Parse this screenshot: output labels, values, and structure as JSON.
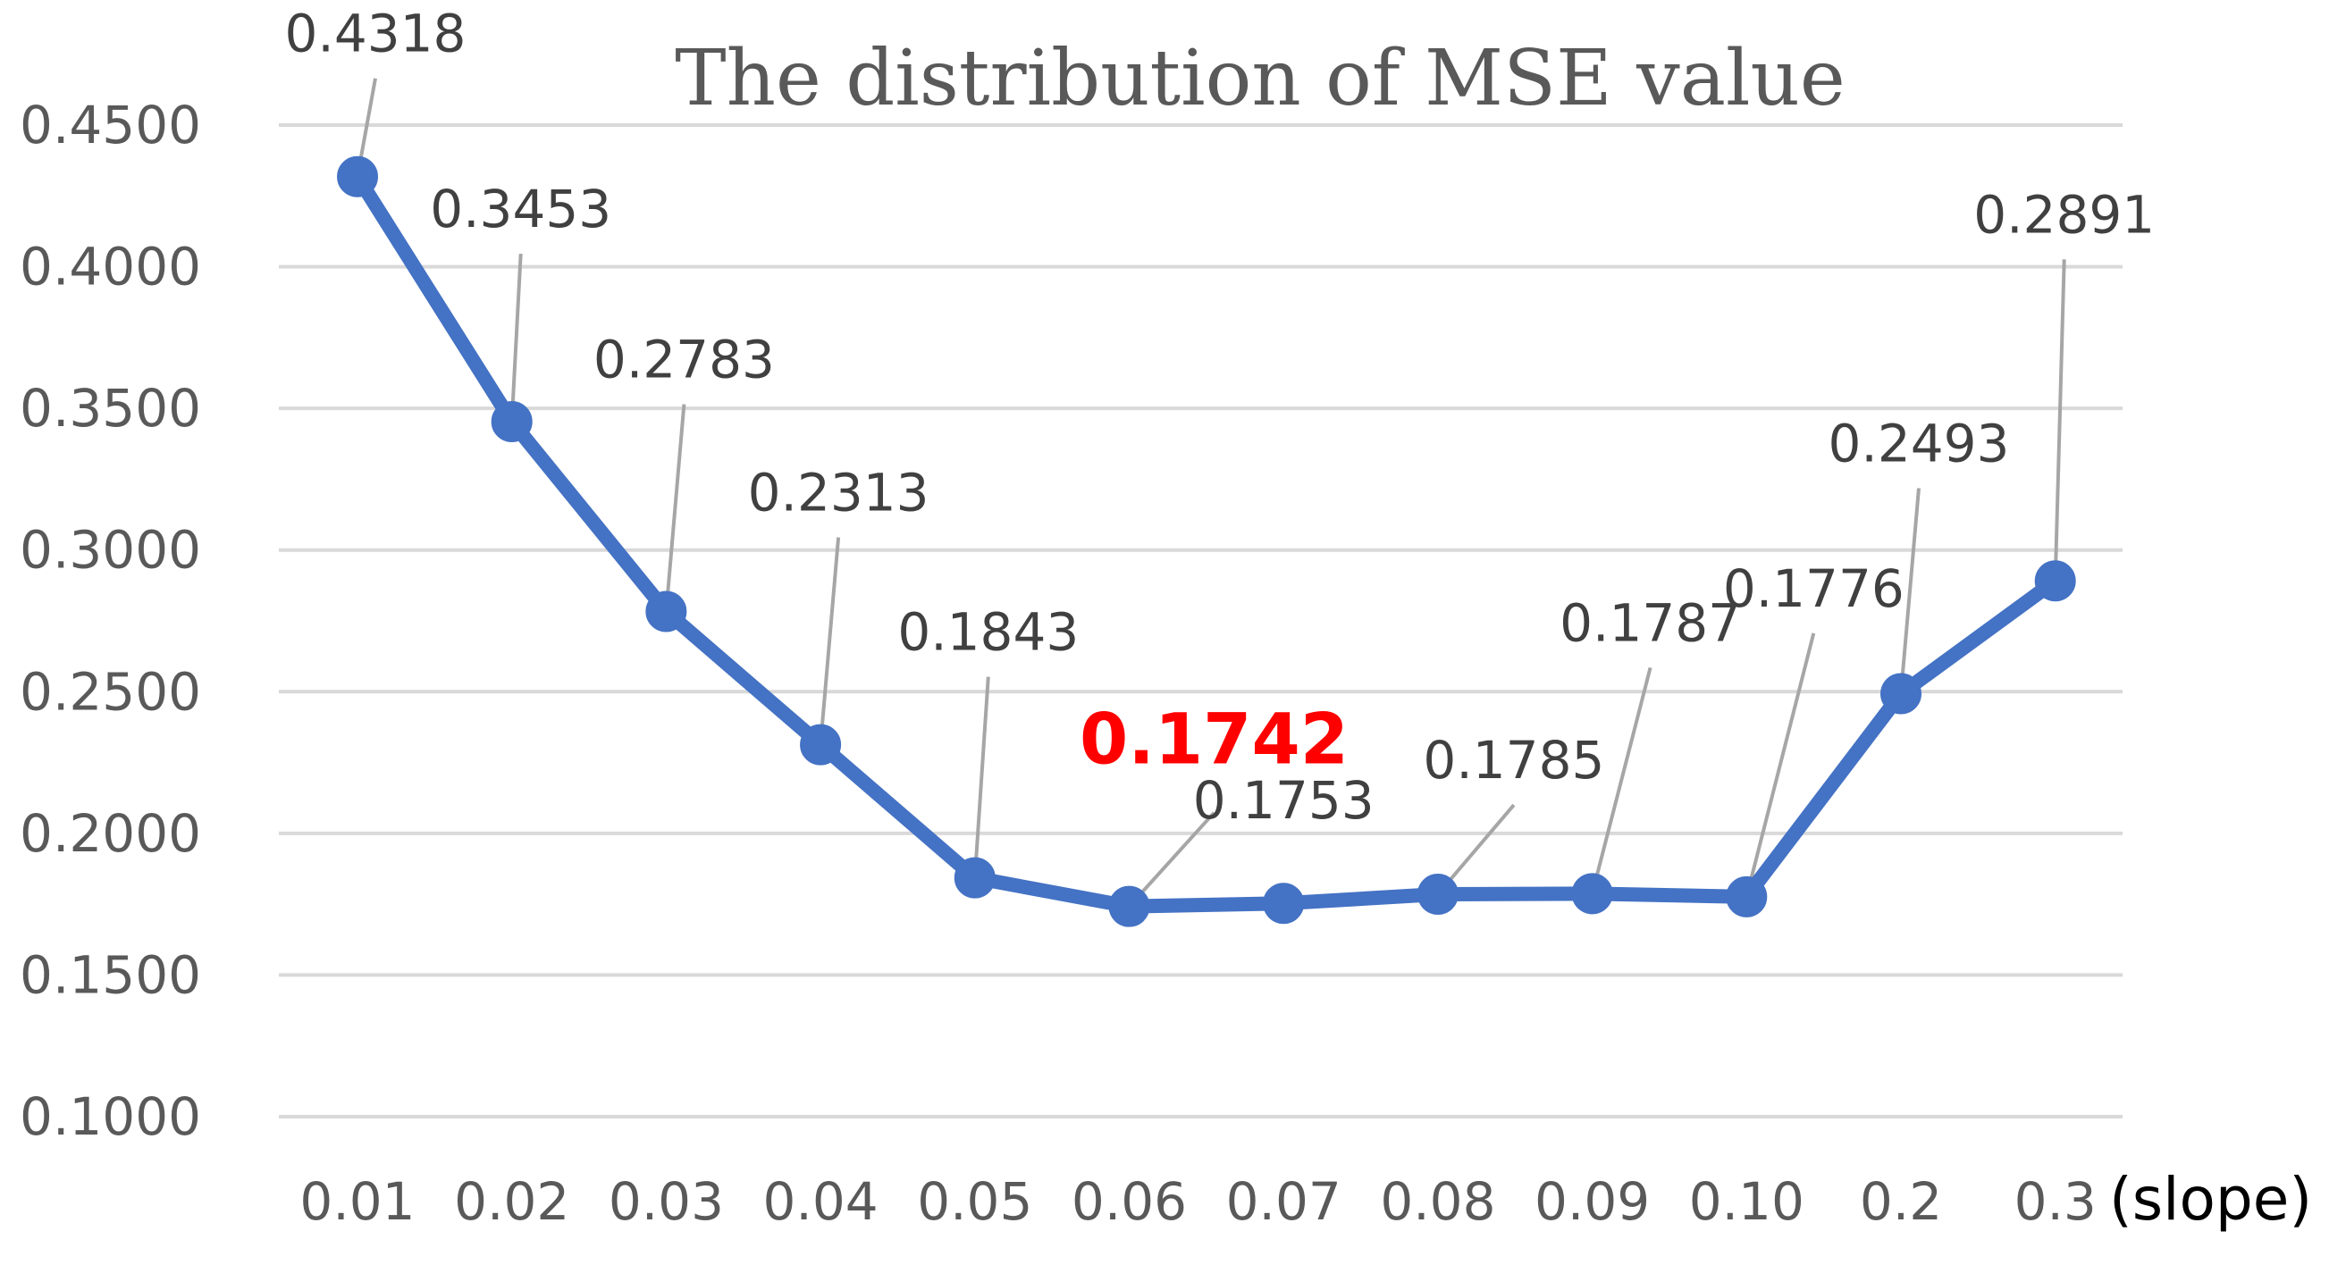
{
  "chart_data": {
    "type": "line",
    "title": "The distribution of MSE value",
    "xlabel": "(slope)",
    "ylabel": "",
    "categories": [
      "0.01",
      "0.02",
      "0.03",
      "0.04",
      "0.05",
      "0.06",
      "0.07",
      "0.08",
      "0.09",
      "0.10",
      "0.2",
      "0.3"
    ],
    "series": [
      {
        "name": "MSE",
        "values": [
          0.4318,
          0.3453,
          0.2783,
          0.2313,
          0.1843,
          0.1742,
          0.1753,
          0.1785,
          0.1787,
          0.1776,
          0.2493,
          0.2891
        ],
        "data_labels": [
          "0.4318",
          "0.3453",
          "0.2783",
          "0.2313",
          "0.1843",
          "0.1742",
          "0.1753",
          "0.1785",
          "0.1787",
          "0.1776",
          "0.2493",
          "0.2891"
        ],
        "color": "#4472c4"
      }
    ],
    "highlight": {
      "index": 5,
      "color": "#ff0000"
    },
    "ylim": [
      0.1,
      0.45
    ],
    "yticks": [
      "0.1000",
      "0.1500",
      "0.2000",
      "0.2500",
      "0.3000",
      "0.3500",
      "0.4000",
      "0.4500"
    ],
    "grid": true,
    "legend": "none"
  }
}
